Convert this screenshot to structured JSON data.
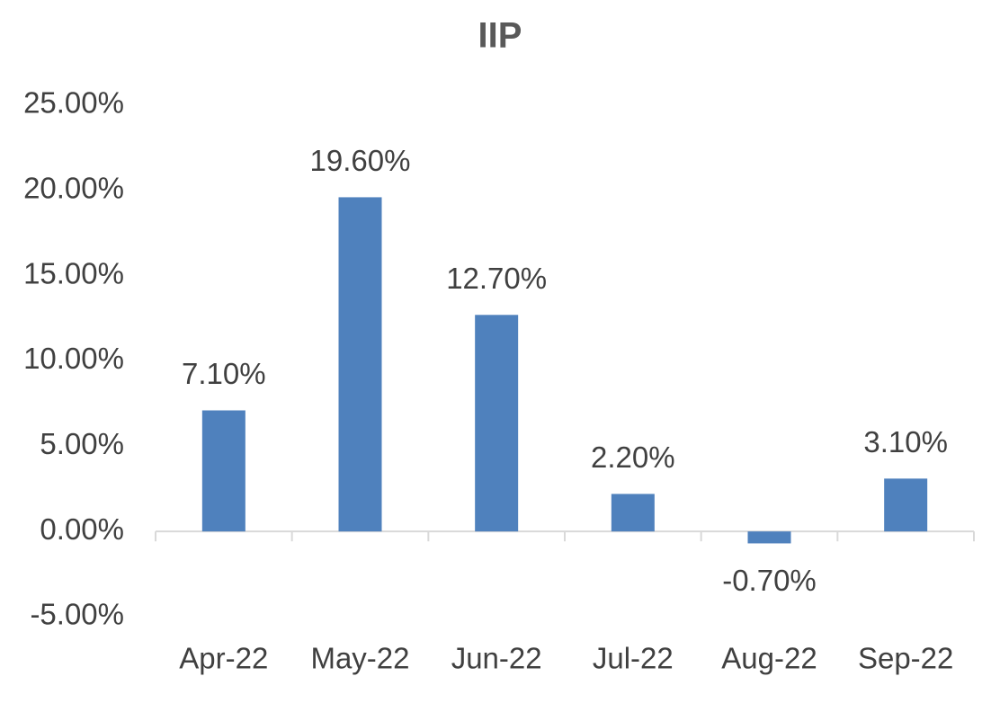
{
  "chart_data": {
    "type": "bar",
    "title": "IIP",
    "categories": [
      "Apr-22",
      "May-22",
      "Jun-22",
      "Jul-22",
      "Aug-22",
      "Sep-22"
    ],
    "values": [
      7.1,
      19.6,
      12.7,
      2.2,
      -0.7,
      3.1
    ],
    "value_labels": [
      "7.10%",
      "19.60%",
      "12.70%",
      "2.20%",
      "-0.70%",
      "3.10%"
    ],
    "color": "#4f81bd",
    "ylim": [
      -5,
      25
    ],
    "yticks": [
      {
        "value": -5,
        "label": "-5.00%"
      },
      {
        "value": 0,
        "label": "0.00%"
      },
      {
        "value": 5,
        "label": "5.00%"
      },
      {
        "value": 10,
        "label": "10.00%"
      },
      {
        "value": 15,
        "label": "15.00%"
      },
      {
        "value": 20,
        "label": "20.00%"
      },
      {
        "value": 25,
        "label": "25.00%"
      }
    ],
    "grid": false
  }
}
